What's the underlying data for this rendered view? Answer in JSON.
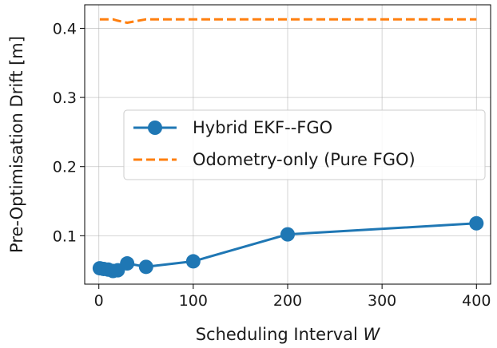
{
  "chart_data": {
    "type": "line",
    "xlabel": "Scheduling Interval",
    "xlabel_symbol": "W",
    "ylabel": "Pre-Optimisation Drift [m]",
    "xlim": [
      -15,
      415
    ],
    "ylim": [
      0.03,
      0.434
    ],
    "x_ticks": [
      0,
      100,
      200,
      300,
      400
    ],
    "x_tick_labels": [
      "0",
      "100",
      "200",
      "300",
      "400"
    ],
    "y_ticks": [
      0.1,
      0.2,
      0.3,
      0.4
    ],
    "y_tick_labels": [
      "0.1",
      "0.2",
      "0.3",
      "0.4"
    ],
    "grid": true,
    "legend_position": "center-right",
    "series": [
      {
        "name": "Hybrid EKF--FGO",
        "color": "#1f77b4",
        "style": "solid",
        "marker": "circle",
        "x": [
          1,
          5,
          10,
          15,
          20,
          30,
          50,
          100,
          200,
          400
        ],
        "y": [
          0.053,
          0.052,
          0.051,
          0.049,
          0.05,
          0.06,
          0.055,
          0.063,
          0.102,
          0.118
        ]
      },
      {
        "name": "Odometry-only (Pure FGO)",
        "color": "#ff7f0e",
        "style": "dashed",
        "marker": "none",
        "x": [
          1,
          5,
          10,
          15,
          20,
          30,
          50,
          100,
          200,
          400
        ],
        "y": [
          0.413,
          0.413,
          0.413,
          0.413,
          0.411,
          0.408,
          0.413,
          0.413,
          0.413,
          0.413
        ]
      }
    ]
  }
}
